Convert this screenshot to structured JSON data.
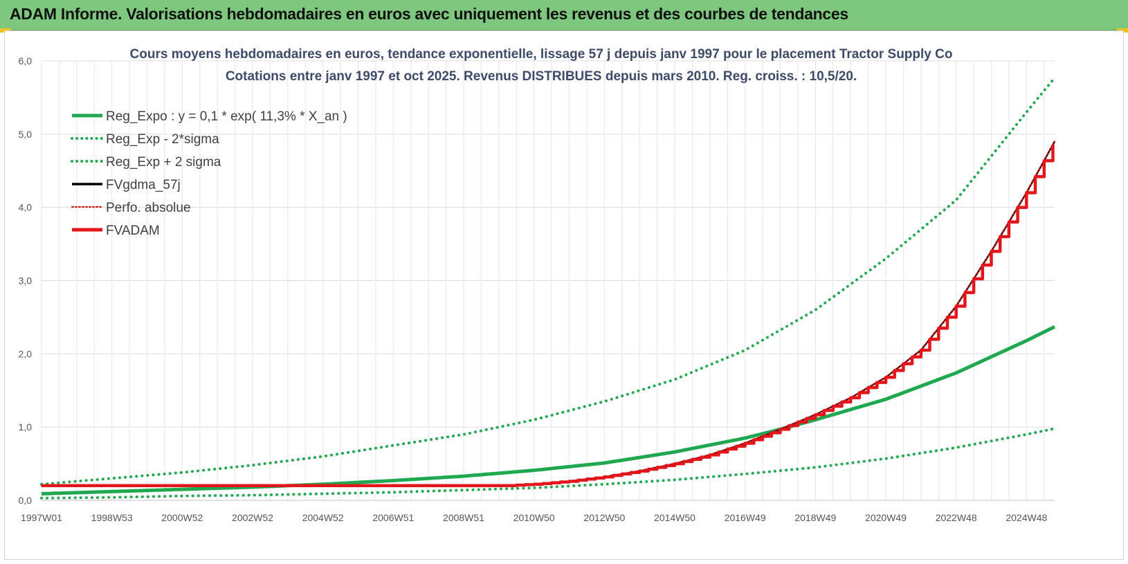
{
  "header": {
    "title": "ADAM Informe. Valorisations hebdomadaires en euros avec uniquement les revenus et des courbes de tendances",
    "background_color": "#7ec77e"
  },
  "chart_data": {
    "type": "line",
    "title": "Cours moyens hebdomadaires en euros, tendance exponentielle, lissage 57 j depuis janv 1997 pour le placement Tractor Supply Co",
    "subtitle": "Cotations entre janv 1997 et oct 2025. Revenus DISTRIBUES depuis mars 2010. Reg. croiss. : 10,5/20.",
    "xlabel": "",
    "ylabel": "",
    "xlim": [
      1997.0,
      2025.8
    ],
    "ylim": [
      0,
      6
    ],
    "grid": true,
    "legend_position": "top-left",
    "y_ticks": [
      "0,0",
      "1,0",
      "2,0",
      "3,0",
      "4,0",
      "5,0",
      "6,0"
    ],
    "x_ticks": [
      {
        "label": "1997W01",
        "x": 1997.0
      },
      {
        "label": "1998W53",
        "x": 1999.0
      },
      {
        "label": "2000W52",
        "x": 2001.0
      },
      {
        "label": "2002W52",
        "x": 2003.0
      },
      {
        "label": "2004W52",
        "x": 2005.0
      },
      {
        "label": "2006W51",
        "x": 2007.0
      },
      {
        "label": "2008W51",
        "x": 2009.0
      },
      {
        "label": "2010W50",
        "x": 2011.0
      },
      {
        "label": "2012W50",
        "x": 2013.0
      },
      {
        "label": "2014W50",
        "x": 2015.0
      },
      {
        "label": "2016W49",
        "x": 2017.0
      },
      {
        "label": "2018W49",
        "x": 2019.0
      },
      {
        "label": "2020W49",
        "x": 2021.0
      },
      {
        "label": "2022W48",
        "x": 2023.0
      },
      {
        "label": "2024W48",
        "x": 2025.0
      }
    ],
    "series": [
      {
        "name": "Reg_Expo : y = 0,1 * exp( 11,3% *  X_an )",
        "color": "#1fa84f",
        "style": "solid",
        "x": [
          1997,
          1999,
          2001,
          2003,
          2005,
          2007,
          2009,
          2011,
          2013,
          2015,
          2017,
          2018,
          2019,
          2021,
          2023,
          2025,
          2025.8
        ],
        "y": [
          0.09,
          0.12,
          0.15,
          0.18,
          0.22,
          0.27,
          0.33,
          0.41,
          0.51,
          0.66,
          0.85,
          0.97,
          1.1,
          1.38,
          1.74,
          2.18,
          2.37
        ]
      },
      {
        "name": "Reg_Exp - 2*sigma",
        "color": "#1fa84f",
        "style": "dotted",
        "x": [
          1997,
          1999,
          2001,
          2003,
          2005,
          2007,
          2009,
          2011,
          2013,
          2015,
          2017,
          2019,
          2021,
          2023,
          2025,
          2025.8
        ],
        "y": [
          0.03,
          0.04,
          0.06,
          0.07,
          0.09,
          0.11,
          0.14,
          0.17,
          0.22,
          0.28,
          0.36,
          0.45,
          0.57,
          0.72,
          0.9,
          0.98
        ]
      },
      {
        "name": "Reg_Exp + 2 sigma",
        "color": "#1fa84f",
        "style": "dotted",
        "x": [
          1997,
          1999,
          2001,
          2003,
          2005,
          2007,
          2009,
          2011,
          2013,
          2015,
          2017,
          2019,
          2021,
          2023,
          2025,
          2025.8
        ],
        "y": [
          0.22,
          0.3,
          0.38,
          0.48,
          0.6,
          0.75,
          0.9,
          1.1,
          1.35,
          1.65,
          2.05,
          2.6,
          3.3,
          4.1,
          5.3,
          5.77
        ]
      },
      {
        "name": "FVgdma_57j",
        "color": "#000000",
        "style": "solid",
        "x": [
          1997,
          2000,
          2005,
          2008,
          2010.2,
          2011,
          2012,
          2013,
          2014,
          2015,
          2016,
          2017,
          2018,
          2019,
          2020,
          2021,
          2022,
          2023,
          2024,
          2025,
          2025.8
        ],
        "y": [
          0.2,
          0.2,
          0.2,
          0.2,
          0.2,
          0.22,
          0.26,
          0.32,
          0.4,
          0.5,
          0.62,
          0.78,
          0.97,
          1.17,
          1.4,
          1.68,
          2.05,
          2.65,
          3.4,
          4.2,
          4.9
        ]
      },
      {
        "name": "Perfo. absolue",
        "color": "#cc0000",
        "style": "dotted",
        "x": [
          1997,
          2000,
          2005,
          2008,
          2010.2,
          2011,
          2012,
          2013,
          2014,
          2015,
          2016,
          2017,
          2018,
          2019,
          2020,
          2021,
          2022,
          2023,
          2024,
          2025,
          2025.8
        ],
        "y": [
          0.2,
          0.2,
          0.2,
          0.2,
          0.2,
          0.22,
          0.26,
          0.32,
          0.4,
          0.5,
          0.62,
          0.78,
          0.97,
          1.17,
          1.4,
          1.68,
          2.05,
          2.65,
          3.4,
          4.2,
          4.9
        ]
      },
      {
        "name": "FVADAM",
        "color": "#e3161b",
        "style": "step",
        "x": [
          1997,
          2000,
          2005,
          2008,
          2010.2,
          2011,
          2012,
          2013,
          2014,
          2015,
          2016,
          2017,
          2018,
          2019,
          2020,
          2021,
          2022,
          2023,
          2024,
          2025,
          2025.8
        ],
        "y": [
          0.2,
          0.2,
          0.2,
          0.2,
          0.2,
          0.22,
          0.26,
          0.32,
          0.4,
          0.5,
          0.62,
          0.78,
          0.97,
          1.17,
          1.4,
          1.68,
          2.05,
          2.65,
          3.4,
          4.2,
          4.9
        ]
      }
    ]
  }
}
